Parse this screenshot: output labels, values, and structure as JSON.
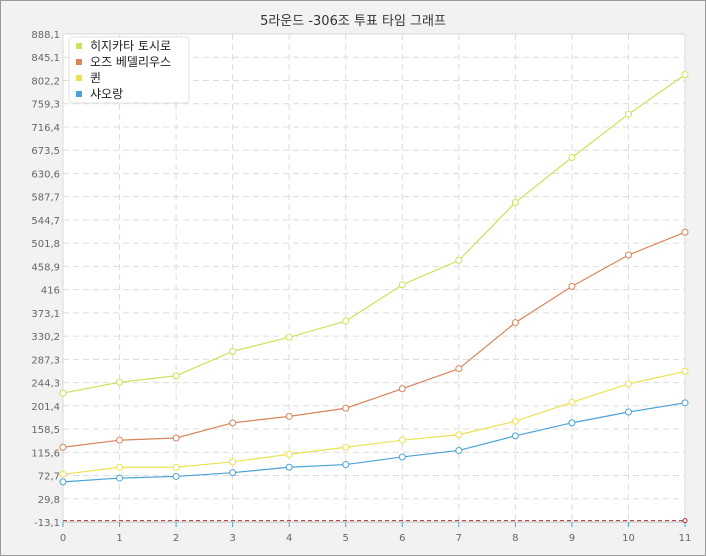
{
  "chart_data": {
    "type": "line",
    "title": "5라운드 -306조 투표 타임 그래프",
    "xlabel": "",
    "ylabel": "",
    "x": [
      0,
      1,
      2,
      3,
      4,
      5,
      6,
      7,
      8,
      9,
      10,
      11
    ],
    "x_ticks": [
      "0",
      "1",
      "2",
      "3",
      "4",
      "5",
      "6",
      "7",
      "8",
      "9",
      "10",
      "11"
    ],
    "y_ticks": [
      "888,1",
      "845,1",
      "802,2",
      "759,3",
      "716,4",
      "673,5",
      "630,6",
      "587,7",
      "544,7",
      "501,8",
      "458,9",
      "416",
      "373,1",
      "330,2",
      "287,3",
      "244,3",
      "201,4",
      "158,5",
      "115,6",
      "72,7",
      "29,8",
      "-13,1"
    ],
    "ylim": [
      -13.1,
      888.1
    ],
    "grid": true,
    "legend_position": "top-left",
    "series": [
      {
        "name": "히지카타 토시로",
        "color": "#cfe05a",
        "values": [
          225,
          245,
          257,
          302,
          328,
          358,
          425,
          470,
          577,
          660,
          740,
          813
        ]
      },
      {
        "name": "오즈 베델리우스",
        "color": "#d9845b",
        "values": [
          125,
          138,
          142,
          170,
          182,
          197,
          233,
          270,
          355,
          422,
          480,
          522
        ]
      },
      {
        "name": "퀸",
        "color": "#ece24f",
        "values": [
          75,
          88,
          88,
          98,
          112,
          125,
          138,
          148,
          173,
          208,
          242,
          265
        ]
      },
      {
        "name": "샤오랑",
        "color": "#4aa3d6",
        "values": [
          61,
          68,
          71,
          78,
          88,
          93,
          107,
          119,
          146,
          170,
          190,
          207
        ]
      }
    ],
    "baseline": {
      "value": -10.5,
      "color": "#b03030"
    }
  }
}
